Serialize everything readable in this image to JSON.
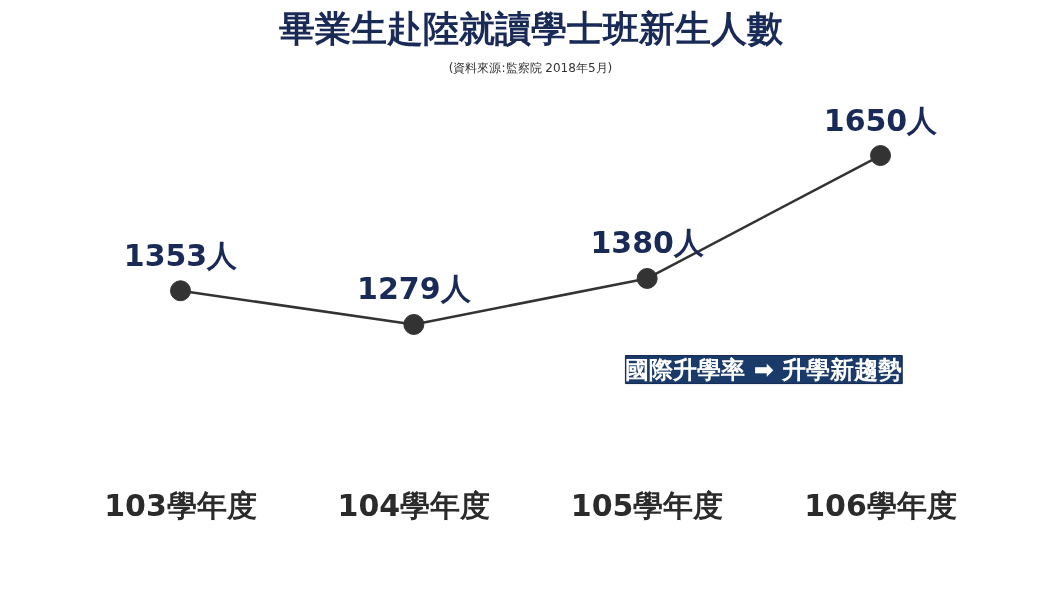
{
  "chart_data": {
    "type": "line",
    "title": "畢業生赴陸就讀學士班新生人數",
    "subtitle": "(資料來源:監察院 2018年5月)",
    "categories": [
      "103學年度",
      "104學年度",
      "105學年度",
      "106學年度"
    ],
    "series": [
      {
        "color": "#333333",
        "values": [
          1353,
          1279,
          1380,
          1650
        ],
        "value_labels": [
          "1353人",
          "1279人",
          "1380人",
          "1650人"
        ]
      }
    ],
    "annotations": [
      "國際升學率 ➡ 升學新趨勢"
    ],
    "marker": "circle",
    "line_style": "solid",
    "grid": false
  }
}
